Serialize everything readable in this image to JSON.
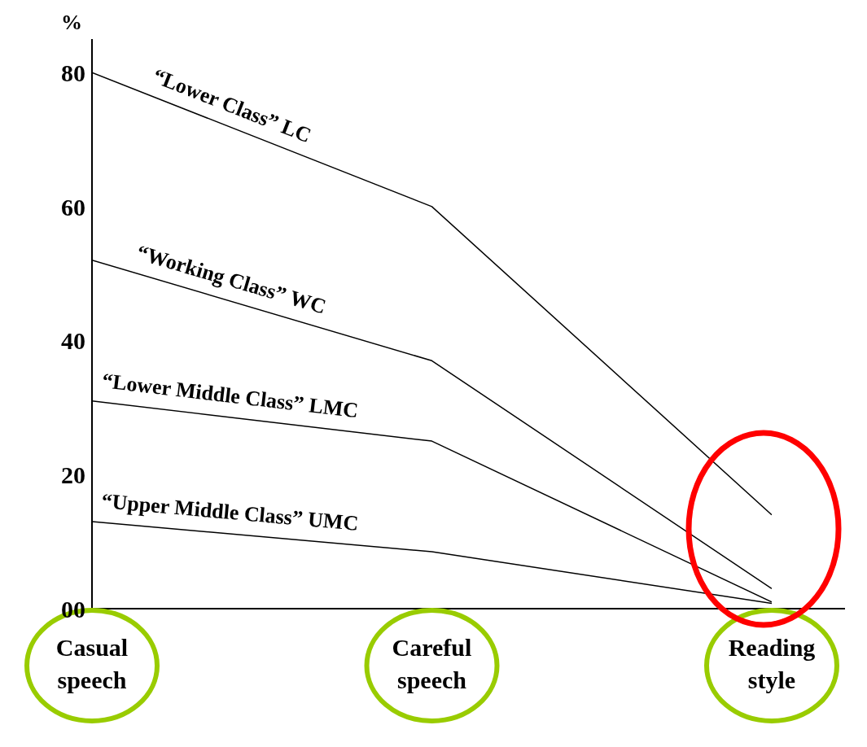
{
  "chart_data": {
    "type": "line",
    "ylabel": "%",
    "categories": [
      "Casual speech",
      "Careful speech",
      "Reading style"
    ],
    "series": [
      {
        "name": "“Lower Class” LC",
        "color": "#000000",
        "values": [
          80,
          60,
          14
        ]
      },
      {
        "name": "“Working Class” WC",
        "color": "#000000",
        "values": [
          52,
          37,
          3
        ]
      },
      {
        "name": "“Lower Middle Class” LMC",
        "color": "#000000",
        "values": [
          31,
          25,
          1
        ]
      },
      {
        "name": "“Upper Middle Class” UMC",
        "color": "#000000",
        "values": [
          13,
          8.5,
          0.8
        ]
      }
    ],
    "ylim": [
      0,
      85
    ],
    "yticks": [
      {
        "value": 0,
        "label": "00"
      },
      20,
      40,
      60,
      80
    ],
    "grid": false,
    "legend": false,
    "marker": "none",
    "line_style": "solid"
  }
}
